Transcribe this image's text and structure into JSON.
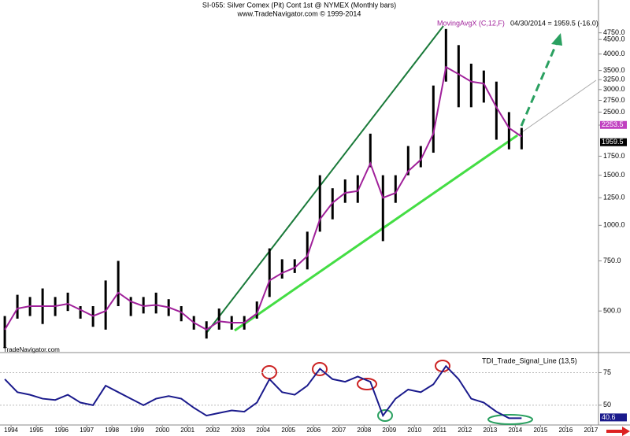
{
  "chart_data": [
    {
      "type": "range-bar",
      "title": "SI-055:  Silver Comex (Pit) Cont 1st @ NYMEX  (Monthly bars)",
      "subtitle": "www.TradeNavigator.com © 1999-2014",
      "annotation": "04/30/2014 = 1959.5 (-16.0)",
      "source": "TradeNavigator.com",
      "log_scale": true,
      "color": "#000000",
      "x": [
        1993.75,
        1994.25,
        1994.75,
        1995.25,
        1995.75,
        1996.25,
        1996.75,
        1997.25,
        1997.75,
        1998.25,
        1998.75,
        1999.25,
        1999.75,
        2000.25,
        2000.75,
        2001.25,
        2001.75,
        2002.25,
        2002.75,
        2003.25,
        2003.75,
        2004.25,
        2004.75,
        2005.25,
        2005.75,
        2006.25,
        2006.75,
        2007.25,
        2007.75,
        2008.25,
        2008.75,
        2009.25,
        2009.75,
        2010.25,
        2010.75,
        2011.25,
        2011.75,
        2012.25,
        2012.75,
        2013.25,
        2013.75,
        2014.25
      ],
      "high": [
        480,
        570,
        560,
        600,
        560,
        580,
        520,
        520,
        640,
        750,
        560,
        560,
        580,
        550,
        520,
        480,
        460,
        510,
        480,
        480,
        540,
        830,
        760,
        760,
        950,
        1500,
        1350,
        1450,
        1500,
        2100,
        1500,
        1500,
        1900,
        1900,
        3100,
        4900,
        4300,
        3700,
        3500,
        3200,
        2500,
        2200
      ],
      "low": [
        370,
        470,
        480,
        450,
        480,
        500,
        470,
        440,
        430,
        520,
        480,
        490,
        490,
        480,
        460,
        430,
        400,
        430,
        430,
        430,
        470,
        560,
        650,
        680,
        700,
        950,
        1050,
        1200,
        1200,
        1600,
        880,
        1200,
        1500,
        1600,
        1800,
        3200,
        2600,
        2600,
        2700,
        2000,
        1850,
        1850
      ],
      "series": [
        {
          "name": "MovingAvgX (C,12,F)",
          "color": "#a0209a",
          "values": [
            430,
            510,
            520,
            520,
            520,
            530,
            505,
            480,
            500,
            580,
            540,
            520,
            525,
            515,
            495,
            455,
            430,
            460,
            455,
            455,
            490,
            640,
            680,
            710,
            780,
            1050,
            1200,
            1300,
            1320,
            1650,
            1250,
            1300,
            1550,
            1700,
            2100,
            3600,
            3400,
            3200,
            3150,
            2600,
            2200,
            2050
          ]
        }
      ],
      "price_tags": [
        {
          "value": 2253.5,
          "color": "#c040c0"
        },
        {
          "value": 1959.5,
          "color": "#000000"
        }
      ],
      "xlim": [
        1993.56,
        2017.3
      ],
      "xticks": [
        1994,
        1995,
        1996,
        1997,
        1998,
        1999,
        2000,
        2001,
        2002,
        2003,
        2004,
        2005,
        2006,
        2007,
        2008,
        2009,
        2010,
        2011,
        2012,
        2013,
        2014,
        2015,
        2016,
        2017
      ],
      "ylim": [
        364,
        6000
      ],
      "yticks": [
        {
          "value": 500,
          "label": "500.0"
        },
        {
          "value": 750,
          "label": "750.0"
        },
        {
          "value": 1000,
          "label": "1000.0"
        },
        {
          "value": 1250,
          "label": "1250.0"
        },
        {
          "value": 1500,
          "label": "1500.0"
        },
        {
          "value": 1750,
          "label": "1750.0"
        },
        {
          "value": 2250,
          "label": "2250.0"
        },
        {
          "value": 2500,
          "label": "2500.0"
        },
        {
          "value": 2750,
          "label": "2750.0"
        },
        {
          "value": 3000,
          "label": "3000.0"
        },
        {
          "value": 3250,
          "label": "3250.0"
        },
        {
          "value": 3500,
          "label": "3500.0"
        },
        {
          "value": 4000,
          "label": "4000.0"
        },
        {
          "value": 4500,
          "label": "4500.0"
        },
        {
          "value": 4750,
          "label": "4750.0"
        }
      ]
    },
    {
      "type": "line",
      "series": [
        {
          "name": "TDI_Trade_Signal_Line (13,5)",
          "color": "#1a1a8c",
          "values": [
            70,
            60,
            58,
            55,
            54,
            58,
            52,
            50,
            65,
            60,
            55,
            50,
            55,
            57,
            55,
            48,
            42,
            44,
            46,
            45,
            52,
            70,
            60,
            58,
            65,
            78,
            70,
            68,
            72,
            68,
            42,
            55,
            62,
            60,
            66,
            80,
            70,
            55,
            52,
            45,
            40,
            40
          ]
        }
      ],
      "x": [
        1993.75,
        1994.25,
        1994.75,
        1995.25,
        1995.75,
        1996.25,
        1996.75,
        1997.25,
        1997.75,
        1998.25,
        1998.75,
        1999.25,
        1999.75,
        2000.25,
        2000.75,
        2001.25,
        2001.75,
        2002.25,
        2002.75,
        2003.25,
        2003.75,
        2004.25,
        2004.75,
        2005.25,
        2005.75,
        2006.25,
        2006.75,
        2007.25,
        2007.75,
        2008.25,
        2008.75,
        2009.25,
        2009.75,
        2010.25,
        2010.75,
        2011.25,
        2011.75,
        2012.25,
        2012.75,
        2013.25,
        2013.75,
        2014.25
      ],
      "price_tags": [
        {
          "value": 40.6,
          "color": "#1a1a8c"
        }
      ],
      "xlim": [
        1993.56,
        2017.3
      ],
      "ylim": [
        36,
        88
      ],
      "yticks": [
        50,
        75
      ],
      "grid": true
    }
  ]
}
